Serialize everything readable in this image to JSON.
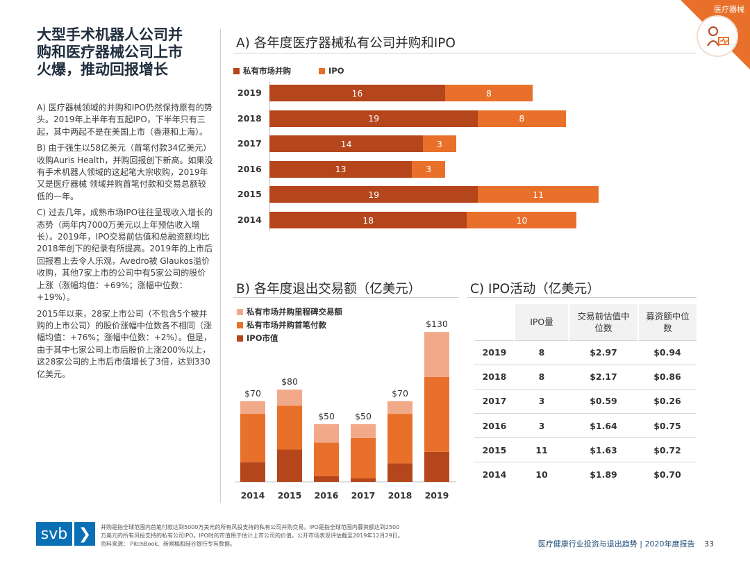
{
  "corner": {
    "label": "医疗器械",
    "icon": "medical-stethoscope-icon"
  },
  "title": {
    "line1": "大型手术机器人公司并",
    "line2": "购和医疗器械公司上市",
    "line3": "火爆，推动回报增长"
  },
  "paragraphs": [
    "A) 医疗器械领域的并购和IPO仍然保持原有的势头。2019年上半年有五起IPO，下半年只有三起，其中两起不是在美国上市（香港和上海）。",
    "B) 由于强生以58亿美元（首笔付款34亿美元）收购Auris Health，并购回报创下新高。如果没有手术机器人领域的这起笔大宗收购，2019年又是医疗器械 领域并购首笔付款和交易总额较低的一年。",
    "C) 过去几年，成熟市场IPO往往呈现收入增长的态势（两年内7000万美元以上年预估收入增长）。2019年，IPO交易前估值和总融资额均比2018年创下的纪录有所提高。2019年的上市后回报看上去令人乐观，Avedro被 Glaukos溢价收购，其他7家上市的公司中有5家公司的股价上涨（涨幅均值：+69%；涨幅中位数：+19%）。",
    "2015年以来，28家上市公司（不包含5个被并购的上市公司）的股价涨幅中位数各不相同（涨幅均值：+76%；涨幅中位数：+2%）。但是，由于其中七家公司上市后股价上涨200%以上，这28家公司的上市后市值增长了3倍，达到330亿美元。"
  ],
  "sectionA": {
    "title": "A) 各年度医疗器械私有公司并购和IPO",
    "chart_data": {
      "type": "bar",
      "orientation": "horizontal-stacked",
      "categories": [
        "2019",
        "2018",
        "2017",
        "2016",
        "2015",
        "2014"
      ],
      "series": [
        {
          "name": "私有市场并购",
          "values": [
            16,
            19,
            14,
            13,
            19,
            18
          ],
          "color": "#b5451b"
        },
        {
          "name": "IPO",
          "values": [
            8,
            8,
            3,
            3,
            11,
            10
          ],
          "color": "#e8702a"
        }
      ]
    }
  },
  "sectionB": {
    "title": "B) 各年度退出交易额（亿美元）",
    "chart_data": {
      "type": "bar",
      "orientation": "vertical-stacked",
      "categories": [
        "2014",
        "2015",
        "2016",
        "2017",
        "2018",
        "2019"
      ],
      "series": [
        {
          "name": "IPO市值",
          "values": [
            17,
            28,
            5,
            3,
            16,
            26
          ],
          "color": "#b5451b"
        },
        {
          "name": "私有市场并购首笔付款",
          "values": [
            42,
            38,
            29,
            35,
            43,
            65
          ],
          "color": "#e8702a"
        },
        {
          "name": "私有市场并购里程碑交易额",
          "values": [
            11,
            14,
            16,
            12,
            11,
            39
          ],
          "color": "#f2a98a"
        }
      ],
      "total_labels": [
        "$70",
        "$80",
        "$50",
        "$50",
        "$70",
        "$130"
      ],
      "ylim": [
        0,
        140
      ]
    }
  },
  "sectionC": {
    "title": "C) IPO活动（亿美元）",
    "headers": [
      "",
      "IPO量",
      "交易前估值中位数",
      "募资额中位数"
    ],
    "rows": [
      [
        "2019",
        "8",
        "$2.97",
        "$0.94"
      ],
      [
        "2018",
        "8",
        "$2.17",
        "$0.86"
      ],
      [
        "2017",
        "3",
        "$0.59",
        "$0.26"
      ],
      [
        "2016",
        "3",
        "$1.64",
        "$0.75"
      ],
      [
        "2015",
        "11",
        "$1.63",
        "$0.72"
      ],
      [
        "2014",
        "10",
        "$1.89",
        "$0.70"
      ]
    ]
  },
  "footer": {
    "logo_text": "svb",
    "logo_chevron": "❯",
    "note1": "并购是指全球范围内首笔付款达到5000万美元的所有风投支持的私有公司并购交易。IPO是指全球范围内募资额达到2500",
    "note2": "万美元的所有风投支持的私有公司IPO。IPO时的市值用于估计上市公司的价值。公开市场表现评估截至2019年12月29日。",
    "note3": "资料来源：  PitchBook、新闻稿和硅谷银行专有数据。",
    "report": "医疗健康行业投资与退出趋势 | 2020年度报告",
    "page": "33"
  }
}
